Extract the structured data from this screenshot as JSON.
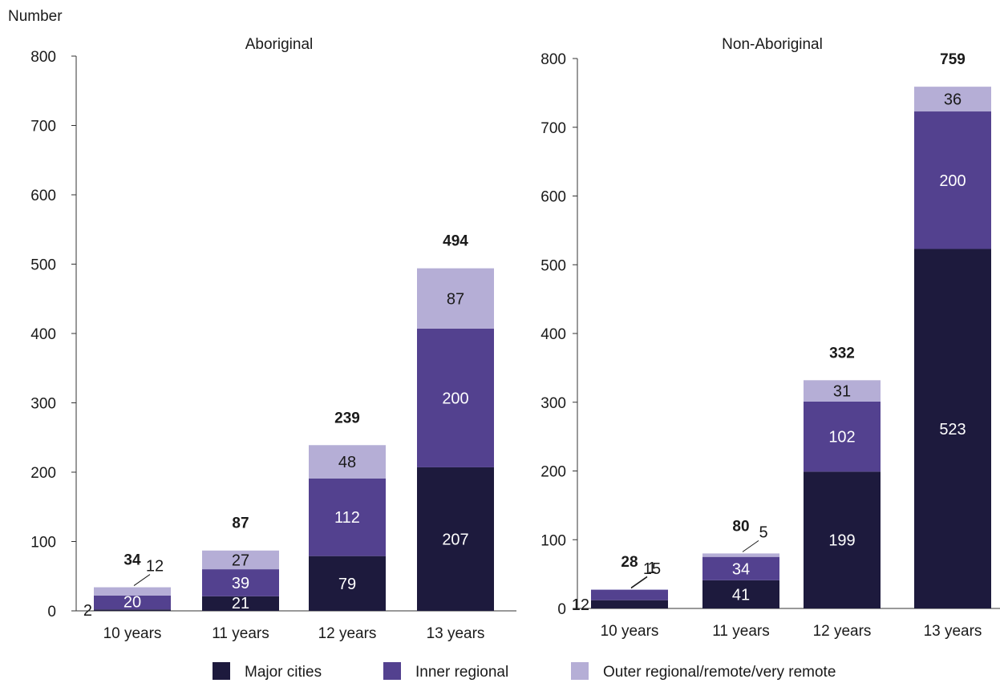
{
  "y_axis_label": "Number",
  "colors": {
    "major_cities": "#1d1a3d",
    "inner_regional": "#53418f",
    "outer_regional": "#b5aed6",
    "axis": "#333333"
  },
  "legend": [
    {
      "key": "major_cities",
      "label": "Major cities"
    },
    {
      "key": "inner_regional",
      "label": "Inner regional"
    },
    {
      "key": "outer_regional",
      "label": "Outer regional/remote/very remote"
    }
  ],
  "chart_data": [
    {
      "type": "bar",
      "stacked": true,
      "title": "Aboriginal",
      "ylabel": "Number",
      "ylim": [
        0,
        800
      ],
      "yticks": [
        0,
        100,
        200,
        300,
        400,
        500,
        600,
        700,
        800
      ],
      "categories": [
        "10 years",
        "11 years",
        "12 years",
        "13 years"
      ],
      "series": [
        {
          "name": "Major cities",
          "key": "major_cities",
          "values": [
            2,
            21,
            79,
            207
          ],
          "labels": [
            "2",
            "21",
            "79",
            "207"
          ]
        },
        {
          "name": "Inner regional",
          "key": "inner_regional",
          "values": [
            20,
            39,
            112,
            200
          ],
          "labels": [
            "20",
            "39",
            "112",
            "200"
          ]
        },
        {
          "name": "Outer regional/remote/very remote",
          "key": "outer_regional",
          "values": [
            12,
            27,
            48,
            87
          ],
          "labels": [
            "12",
            "27",
            "48",
            "87"
          ]
        }
      ],
      "totals": [
        "34",
        "87",
        "239",
        "494"
      ]
    },
    {
      "type": "bar",
      "stacked": true,
      "title": "Non-Aboriginal",
      "ylim": [
        0,
        800
      ],
      "yticks": [
        0,
        100,
        200,
        300,
        400,
        500,
        600,
        700,
        800
      ],
      "categories": [
        "10 years",
        "11 years",
        "12 years",
        "13 years"
      ],
      "series": [
        {
          "name": "Major cities",
          "key": "major_cities",
          "values": [
            12,
            41,
            199,
            523
          ],
          "labels": [
            "12",
            "41",
            "199",
            "523"
          ]
        },
        {
          "name": "Inner regional",
          "key": "inner_regional",
          "values": [
            15,
            34,
            102,
            200
          ],
          "labels": [
            "15",
            "34",
            "102",
            "200"
          ]
        },
        {
          "name": "Outer regional/remote/very remote",
          "key": "outer_regional",
          "values": [
            1,
            5,
            31,
            36
          ],
          "labels": [
            "1",
            "5",
            "31",
            "36"
          ]
        }
      ],
      "totals": [
        "28",
        "80",
        "332",
        "759"
      ]
    }
  ]
}
